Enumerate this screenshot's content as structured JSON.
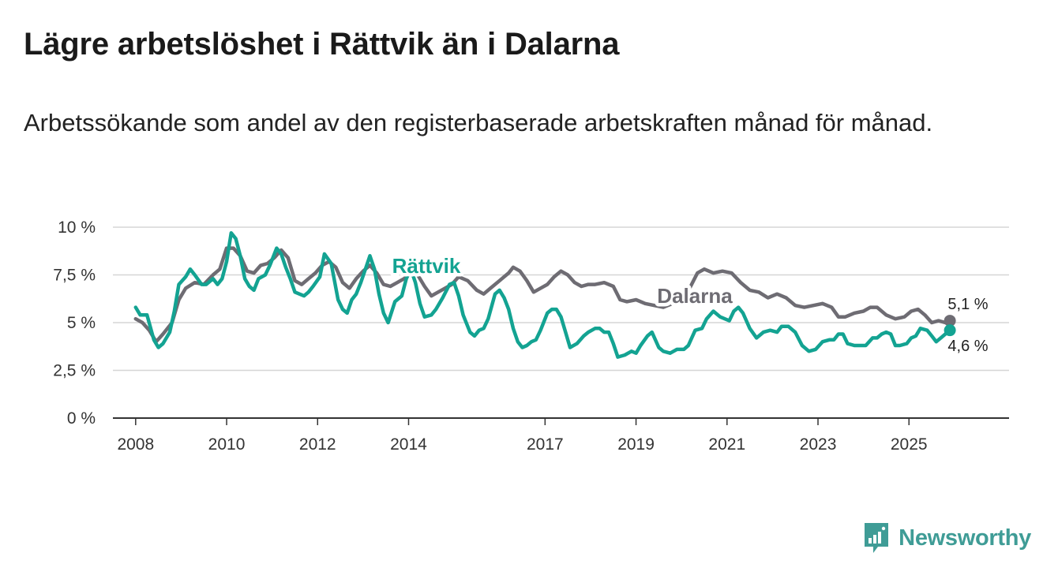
{
  "title": "Lägre arbetslöshet i Rättvik än i Dalarna",
  "subtitle": "Arbetssökande som andel av den registerbaserade arbetskraften månad för månad.",
  "brand": {
    "name": "Newsworthy",
    "icon": "bar-chart-bubble-icon",
    "color": "#3f9c96"
  },
  "chart_data": {
    "type": "line",
    "ylim": [
      0,
      10
    ],
    "yticks": [
      {
        "value": 0,
        "label": "0 %"
      },
      {
        "value": 2.5,
        "label": "2,5 %"
      },
      {
        "value": 5,
        "label": "5 %"
      },
      {
        "value": 7.5,
        "label": "7,5 %"
      },
      {
        "value": 10,
        "label": "10 %"
      }
    ],
    "xlim": [
      2007.5,
      2027.2
    ],
    "xticks": [
      {
        "value": 2008,
        "label": "2008"
      },
      {
        "value": 2010,
        "label": "2010"
      },
      {
        "value": 2012,
        "label": "2012"
      },
      {
        "value": 2014,
        "label": "2014"
      },
      {
        "value": 2017,
        "label": "2017"
      },
      {
        "value": 2019,
        "label": "2019"
      },
      {
        "value": 2021,
        "label": "2021"
      },
      {
        "value": 2023,
        "label": "2023"
      },
      {
        "value": 2025,
        "label": "2025"
      }
    ],
    "grid": true,
    "series": [
      {
        "name": "Dalarna",
        "color": "#6e6c73",
        "end_label": "5,1 %",
        "points": [
          [
            2008.0,
            5.2
          ],
          [
            2008.15,
            5.0
          ],
          [
            2008.3,
            4.6
          ],
          [
            2008.45,
            4.0
          ],
          [
            2008.6,
            4.4
          ],
          [
            2008.8,
            5.0
          ],
          [
            2008.95,
            6.2
          ],
          [
            2009.1,
            6.8
          ],
          [
            2009.3,
            7.1
          ],
          [
            2009.5,
            7.0
          ],
          [
            2009.7,
            7.5
          ],
          [
            2009.85,
            7.8
          ],
          [
            2010.0,
            8.9
          ],
          [
            2010.15,
            8.9
          ],
          [
            2010.3,
            8.5
          ],
          [
            2010.45,
            7.7
          ],
          [
            2010.6,
            7.6
          ],
          [
            2010.75,
            8.0
          ],
          [
            2010.9,
            8.1
          ],
          [
            2011.05,
            8.4
          ],
          [
            2011.2,
            8.8
          ],
          [
            2011.35,
            8.4
          ],
          [
            2011.5,
            7.2
          ],
          [
            2011.65,
            7.0
          ],
          [
            2011.8,
            7.3
          ],
          [
            2011.95,
            7.6
          ],
          [
            2012.1,
            8.0
          ],
          [
            2012.25,
            8.2
          ],
          [
            2012.4,
            7.9
          ],
          [
            2012.55,
            7.1
          ],
          [
            2012.7,
            6.8
          ],
          [
            2012.85,
            7.3
          ],
          [
            2013.0,
            7.7
          ],
          [
            2013.15,
            8.0
          ],
          [
            2013.3,
            7.6
          ],
          [
            2013.45,
            7.0
          ],
          [
            2013.6,
            6.9
          ],
          [
            2013.75,
            7.1
          ],
          [
            2013.9,
            7.3
          ],
          [
            2014.05,
            7.6
          ],
          [
            2014.2,
            7.5
          ],
          [
            2014.35,
            6.9
          ],
          [
            2014.5,
            6.4
          ],
          [
            2014.65,
            6.6
          ],
          [
            2014.8,
            6.8
          ],
          [
            2014.95,
            7.0
          ],
          [
            2015.1,
            7.4
          ],
          [
            2015.3,
            7.2
          ],
          [
            2015.5,
            6.7
          ],
          [
            2015.65,
            6.5
          ],
          [
            2015.8,
            6.8
          ],
          [
            2016.0,
            7.2
          ],
          [
            2016.2,
            7.6
          ],
          [
            2016.3,
            7.9
          ],
          [
            2016.45,
            7.7
          ],
          [
            2016.6,
            7.2
          ],
          [
            2016.75,
            6.6
          ],
          [
            2016.9,
            6.8
          ],
          [
            2017.05,
            7.0
          ],
          [
            2017.2,
            7.4
          ],
          [
            2017.35,
            7.7
          ],
          [
            2017.5,
            7.5
          ],
          [
            2017.65,
            7.1
          ],
          [
            2017.8,
            6.9
          ],
          [
            2017.95,
            7.0
          ],
          [
            2018.1,
            7.0
          ],
          [
            2018.3,
            7.1
          ],
          [
            2018.5,
            6.9
          ],
          [
            2018.65,
            6.2
          ],
          [
            2018.8,
            6.1
          ],
          [
            2019.0,
            6.2
          ],
          [
            2019.2,
            6.0
          ],
          [
            2019.4,
            5.9
          ],
          [
            2019.6,
            5.8
          ],
          [
            2019.8,
            6.0
          ],
          [
            2020.0,
            6.2
          ],
          [
            2020.2,
            6.9
          ],
          [
            2020.35,
            7.6
          ],
          [
            2020.5,
            7.8
          ],
          [
            2020.7,
            7.6
          ],
          [
            2020.9,
            7.7
          ],
          [
            2021.1,
            7.6
          ],
          [
            2021.3,
            7.1
          ],
          [
            2021.5,
            6.7
          ],
          [
            2021.7,
            6.6
          ],
          [
            2021.9,
            6.3
          ],
          [
            2022.1,
            6.5
          ],
          [
            2022.3,
            6.3
          ],
          [
            2022.5,
            5.9
          ],
          [
            2022.7,
            5.8
          ],
          [
            2022.9,
            5.9
          ],
          [
            2023.1,
            6.0
          ],
          [
            2023.3,
            5.8
          ],
          [
            2023.45,
            5.3
          ],
          [
            2023.6,
            5.3
          ],
          [
            2023.8,
            5.5
          ],
          [
            2024.0,
            5.6
          ],
          [
            2024.15,
            5.8
          ],
          [
            2024.3,
            5.8
          ],
          [
            2024.5,
            5.4
          ],
          [
            2024.7,
            5.2
          ],
          [
            2024.9,
            5.3
          ],
          [
            2025.05,
            5.6
          ],
          [
            2025.2,
            5.7
          ],
          [
            2025.35,
            5.4
          ],
          [
            2025.5,
            5.0
          ],
          [
            2025.65,
            5.1
          ],
          [
            2025.8,
            5.0
          ],
          [
            2025.9,
            5.1
          ]
        ]
      },
      {
        "name": "Rättvik",
        "color": "#13a392",
        "end_label": "4,6 %",
        "points": [
          [
            2008.0,
            5.8
          ],
          [
            2008.1,
            5.4
          ],
          [
            2008.25,
            5.4
          ],
          [
            2008.4,
            4.1
          ],
          [
            2008.5,
            3.7
          ],
          [
            2008.6,
            3.9
          ],
          [
            2008.75,
            4.5
          ],
          [
            2008.85,
            5.6
          ],
          [
            2008.95,
            7.0
          ],
          [
            2009.1,
            7.4
          ],
          [
            2009.2,
            7.8
          ],
          [
            2009.3,
            7.5
          ],
          [
            2009.45,
            7.0
          ],
          [
            2009.55,
            7.0
          ],
          [
            2009.7,
            7.3
          ],
          [
            2009.8,
            7.0
          ],
          [
            2009.9,
            7.3
          ],
          [
            2010.0,
            8.2
          ],
          [
            2010.1,
            9.7
          ],
          [
            2010.2,
            9.4
          ],
          [
            2010.3,
            8.5
          ],
          [
            2010.4,
            7.3
          ],
          [
            2010.5,
            6.9
          ],
          [
            2010.6,
            6.7
          ],
          [
            2010.7,
            7.3
          ],
          [
            2010.85,
            7.5
          ],
          [
            2010.95,
            8.0
          ],
          [
            2011.1,
            8.9
          ],
          [
            2011.2,
            8.6
          ],
          [
            2011.3,
            7.9
          ],
          [
            2011.4,
            7.3
          ],
          [
            2011.5,
            6.6
          ],
          [
            2011.6,
            6.5
          ],
          [
            2011.7,
            6.4
          ],
          [
            2011.8,
            6.6
          ],
          [
            2011.9,
            6.9
          ],
          [
            2012.05,
            7.4
          ],
          [
            2012.15,
            8.6
          ],
          [
            2012.3,
            8.1
          ],
          [
            2012.45,
            6.2
          ],
          [
            2012.55,
            5.7
          ],
          [
            2012.65,
            5.5
          ],
          [
            2012.75,
            6.2
          ],
          [
            2012.85,
            6.5
          ],
          [
            2012.95,
            7.1
          ],
          [
            2013.05,
            7.8
          ],
          [
            2013.15,
            8.5
          ],
          [
            2013.25,
            7.8
          ],
          [
            2013.35,
            6.5
          ],
          [
            2013.45,
            5.5
          ],
          [
            2013.55,
            5.0
          ],
          [
            2013.7,
            6.1
          ],
          [
            2013.85,
            6.4
          ],
          [
            2013.95,
            7.3
          ],
          [
            2014.05,
            7.8
          ],
          [
            2014.15,
            7.1
          ],
          [
            2014.25,
            6.0
          ],
          [
            2014.35,
            5.3
          ],
          [
            2014.5,
            5.4
          ],
          [
            2014.6,
            5.7
          ],
          [
            2014.75,
            6.3
          ],
          [
            2014.9,
            7.0
          ],
          [
            2015.0,
            7.1
          ],
          [
            2015.1,
            6.4
          ],
          [
            2015.2,
            5.4
          ],
          [
            2015.35,
            4.5
          ],
          [
            2015.45,
            4.3
          ],
          [
            2015.55,
            4.6
          ],
          [
            2015.65,
            4.7
          ],
          [
            2015.75,
            5.2
          ],
          [
            2015.9,
            6.5
          ],
          [
            2016.0,
            6.7
          ],
          [
            2016.1,
            6.3
          ],
          [
            2016.2,
            5.7
          ],
          [
            2016.3,
            4.7
          ],
          [
            2016.4,
            4.0
          ],
          [
            2016.5,
            3.7
          ],
          [
            2016.6,
            3.8
          ],
          [
            2016.7,
            4.0
          ],
          [
            2016.8,
            4.1
          ],
          [
            2016.9,
            4.6
          ],
          [
            2017.05,
            5.5
          ],
          [
            2017.15,
            5.7
          ],
          [
            2017.25,
            5.7
          ],
          [
            2017.35,
            5.3
          ],
          [
            2017.45,
            4.5
          ],
          [
            2017.55,
            3.7
          ],
          [
            2017.7,
            3.9
          ],
          [
            2017.85,
            4.3
          ],
          [
            2017.95,
            4.5
          ],
          [
            2018.1,
            4.7
          ],
          [
            2018.2,
            4.7
          ],
          [
            2018.3,
            4.5
          ],
          [
            2018.4,
            4.5
          ],
          [
            2018.5,
            3.9
          ],
          [
            2018.6,
            3.2
          ],
          [
            2018.75,
            3.3
          ],
          [
            2018.9,
            3.5
          ],
          [
            2019.0,
            3.4
          ],
          [
            2019.1,
            3.8
          ],
          [
            2019.25,
            4.3
          ],
          [
            2019.35,
            4.5
          ],
          [
            2019.5,
            3.7
          ],
          [
            2019.6,
            3.5
          ],
          [
            2019.75,
            3.4
          ],
          [
            2019.9,
            3.6
          ],
          [
            2020.05,
            3.6
          ],
          [
            2020.15,
            3.8
          ],
          [
            2020.3,
            4.6
          ],
          [
            2020.45,
            4.7
          ],
          [
            2020.55,
            5.2
          ],
          [
            2020.7,
            5.6
          ],
          [
            2020.85,
            5.3
          ],
          [
            2021.05,
            5.1
          ],
          [
            2021.15,
            5.6
          ],
          [
            2021.25,
            5.8
          ],
          [
            2021.35,
            5.5
          ],
          [
            2021.5,
            4.7
          ],
          [
            2021.65,
            4.2
          ],
          [
            2021.8,
            4.5
          ],
          [
            2021.95,
            4.6
          ],
          [
            2022.1,
            4.5
          ],
          [
            2022.2,
            4.8
          ],
          [
            2022.35,
            4.8
          ],
          [
            2022.5,
            4.5
          ],
          [
            2022.65,
            3.8
          ],
          [
            2022.8,
            3.5
          ],
          [
            2022.95,
            3.6
          ],
          [
            2023.1,
            4.0
          ],
          [
            2023.25,
            4.1
          ],
          [
            2023.35,
            4.1
          ],
          [
            2023.45,
            4.4
          ],
          [
            2023.55,
            4.4
          ],
          [
            2023.65,
            3.9
          ],
          [
            2023.8,
            3.8
          ],
          [
            2023.95,
            3.8
          ],
          [
            2024.05,
            3.8
          ],
          [
            2024.2,
            4.2
          ],
          [
            2024.3,
            4.2
          ],
          [
            2024.4,
            4.4
          ],
          [
            2024.5,
            4.5
          ],
          [
            2024.6,
            4.4
          ],
          [
            2024.7,
            3.8
          ],
          [
            2024.8,
            3.8
          ],
          [
            2024.95,
            3.9
          ],
          [
            2025.05,
            4.2
          ],
          [
            2025.15,
            4.3
          ],
          [
            2025.25,
            4.7
          ],
          [
            2025.4,
            4.6
          ],
          [
            2025.5,
            4.3
          ],
          [
            2025.6,
            4.0
          ],
          [
            2025.7,
            4.2
          ],
          [
            2025.8,
            4.4
          ],
          [
            2025.9,
            4.6
          ]
        ]
      }
    ]
  }
}
